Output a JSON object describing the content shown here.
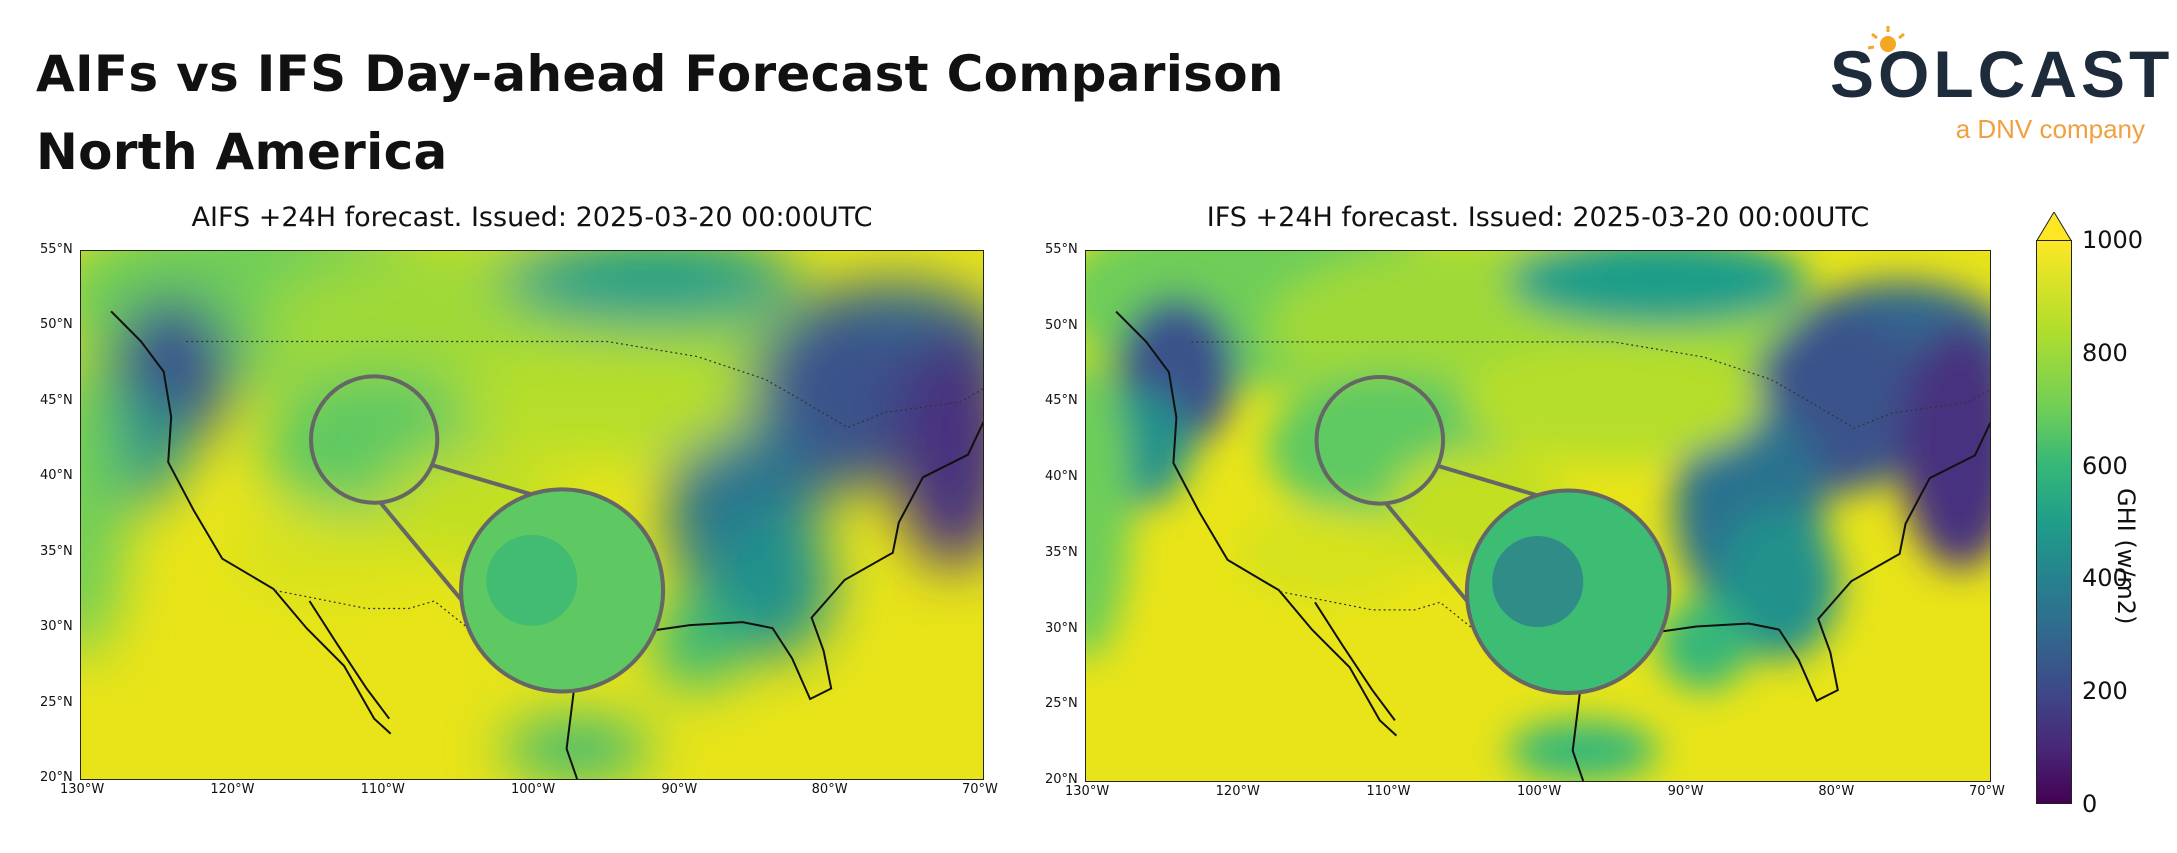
{
  "header": {
    "title_line1": "AIFs vs IFS Day-ahead Forecast Comparison",
    "title_line2": "North America"
  },
  "logo": {
    "word": "SOLCAST",
    "sub": "a DNV company",
    "word_color": "#1d2b3a",
    "sub_color": "#f0a040",
    "sun_color": "#f5a623"
  },
  "chart_data": [
    {
      "type": "heatmap",
      "title": "AIFS +24H forecast. Issued: 2025-03-20 00:00UTC",
      "x_ticks": [
        "130°W",
        "120°W",
        "110°W",
        "100°W",
        "90°W",
        "80°W",
        "70°W"
      ],
      "y_ticks": [
        "55°N",
        "50°N",
        "45°N",
        "40°N",
        "35°N",
        "30°N",
        "25°N",
        "20°N"
      ],
      "xlim": [
        -130,
        -70
      ],
      "ylim": [
        20,
        55
      ],
      "variable": "GHI",
      "zoom_inset": true
    },
    {
      "type": "heatmap",
      "title": "IFS +24H forecast. Issued: 2025-03-20 00:00UTC",
      "x_ticks": [
        "130°W",
        "120°W",
        "110°W",
        "100°W",
        "90°W",
        "80°W",
        "70°W"
      ],
      "y_ticks": [
        "55°N",
        "50°N",
        "45°N",
        "40°N",
        "35°N",
        "30°N",
        "25°N",
        "20°N"
      ],
      "xlim": [
        -130,
        -70
      ],
      "ylim": [
        20,
        55
      ],
      "variable": "GHI",
      "zoom_inset": true
    }
  ],
  "colorbar": {
    "label": "GHI (w/m2)",
    "ticks": [
      "0",
      "200",
      "400",
      "600",
      "800",
      "1000"
    ],
    "range": [
      0,
      1000
    ],
    "colormap": "viridis",
    "extend": "max"
  }
}
